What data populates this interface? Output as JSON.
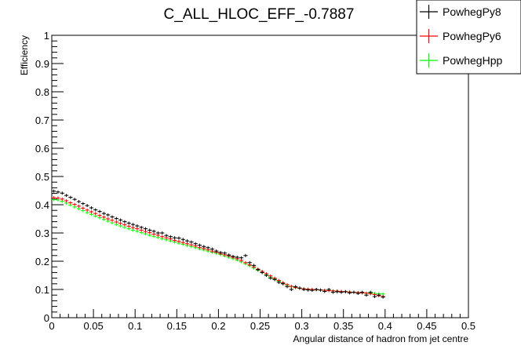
{
  "chart_data": {
    "type": "scatter",
    "title": "C_ALL_HLOC_EFF_-0.7887",
    "xlabel": "Angular distance of hadron from jet centre",
    "ylabel": "Efficiency",
    "xlim": [
      0,
      0.5
    ],
    "ylim": [
      0,
      1
    ],
    "x_ticks": [
      "0",
      "0.05",
      "0.1",
      "0.15",
      "0.2",
      "0.25",
      "0.3",
      "0.35",
      "0.4",
      "0.45",
      "0.5"
    ],
    "y_ticks": [
      "0",
      "0.1",
      "0.2",
      "0.3",
      "0.4",
      "0.5",
      "0.6",
      "0.7",
      "0.8",
      "0.9",
      "1"
    ],
    "grid": false,
    "legend_position": "top-right",
    "x": [
      0.0025,
      0.0075,
      0.0125,
      0.0175,
      0.0225,
      0.0275,
      0.0325,
      0.0375,
      0.0425,
      0.0475,
      0.0525,
      0.0575,
      0.0625,
      0.0675,
      0.0725,
      0.0775,
      0.0825,
      0.0875,
      0.0925,
      0.0975,
      0.1025,
      0.1075,
      0.1125,
      0.1175,
      0.1225,
      0.1275,
      0.1325,
      0.1375,
      0.1425,
      0.1475,
      0.1525,
      0.1575,
      0.1625,
      0.1675,
      0.1725,
      0.1775,
      0.1825,
      0.1875,
      0.1925,
      0.1975,
      0.2025,
      0.2075,
      0.2125,
      0.2175,
      0.2225,
      0.2275,
      0.2325,
      0.2375,
      0.2425,
      0.2475,
      0.2525,
      0.2575,
      0.2625,
      0.2675,
      0.2725,
      0.2775,
      0.2825,
      0.2875,
      0.2925,
      0.2975,
      0.3025,
      0.3075,
      0.3125,
      0.3175,
      0.3225,
      0.3275,
      0.3325,
      0.3375,
      0.3425,
      0.3475,
      0.3525,
      0.3575,
      0.3625,
      0.3675,
      0.3725,
      0.3775,
      0.3825,
      0.3875,
      0.3925,
      0.3975
    ],
    "series": [
      {
        "name": "PowhegPy8",
        "color": "#000000",
        "values": [
          0.448,
          0.445,
          0.441,
          0.433,
          0.426,
          0.419,
          0.411,
          0.404,
          0.397,
          0.389,
          0.382,
          0.376,
          0.369,
          0.364,
          0.357,
          0.351,
          0.346,
          0.34,
          0.335,
          0.33,
          0.325,
          0.32,
          0.315,
          0.31,
          0.306,
          0.3,
          0.3,
          0.291,
          0.287,
          0.283,
          0.282,
          0.277,
          0.272,
          0.268,
          0.262,
          0.257,
          0.252,
          0.248,
          0.243,
          0.236,
          0.231,
          0.229,
          0.222,
          0.217,
          0.214,
          0.212,
          0.22,
          0.195,
          0.185,
          0.17,
          0.16,
          0.15,
          0.14,
          0.135,
          0.125,
          0.12,
          0.11,
          0.1,
          0.11,
          0.105,
          0.1,
          0.098,
          0.097,
          0.1,
          0.098,
          0.093,
          0.1,
          0.09,
          0.092,
          0.09,
          0.092,
          0.088,
          0.09,
          0.086,
          0.09,
          0.08,
          0.09,
          0.075,
          0.08,
          0.073
        ]
      },
      {
        "name": "PowhegPy6",
        "color": "#ff0000",
        "values": [
          0.425,
          0.424,
          0.42,
          0.414,
          0.407,
          0.401,
          0.395,
          0.388,
          0.381,
          0.375,
          0.369,
          0.362,
          0.356,
          0.35,
          0.345,
          0.339,
          0.334,
          0.329,
          0.324,
          0.319,
          0.315,
          0.31,
          0.305,
          0.301,
          0.296,
          0.292,
          0.287,
          0.283,
          0.279,
          0.274,
          0.27,
          0.266,
          0.262,
          0.258,
          0.254,
          0.249,
          0.245,
          0.241,
          0.236,
          0.232,
          0.227,
          0.223,
          0.219,
          0.214,
          0.209,
          0.203,
          0.195,
          0.187,
          0.18,
          0.172,
          0.164,
          0.156,
          0.148,
          0.14,
          0.132,
          0.124,
          0.117,
          0.111,
          0.107,
          0.104,
          0.102,
          0.101,
          0.1,
          0.099,
          0.098,
          0.097,
          0.096,
          0.095,
          0.094,
          0.093,
          0.092,
          0.091,
          0.09,
          0.089,
          0.088,
          0.087,
          0.085,
          0.082,
          0.078,
          0.075
        ]
      },
      {
        "name": "PowhegHpp",
        "color": "#00ff00",
        "values": [
          0.418,
          0.417,
          0.412,
          0.406,
          0.399,
          0.392,
          0.386,
          0.379,
          0.372,
          0.366,
          0.36,
          0.354,
          0.348,
          0.342,
          0.336,
          0.33,
          0.325,
          0.32,
          0.315,
          0.31,
          0.306,
          0.301,
          0.297,
          0.292,
          0.288,
          0.284,
          0.28,
          0.276,
          0.272,
          0.268,
          0.264,
          0.26,
          0.256,
          0.252,
          0.248,
          0.244,
          0.24,
          0.236,
          0.232,
          0.228,
          0.224,
          0.219,
          0.214,
          0.209,
          0.204,
          0.198,
          0.191,
          0.184,
          0.176,
          0.168,
          0.16,
          0.152,
          0.144,
          0.137,
          0.129,
          0.122,
          0.115,
          0.11,
          0.106,
          0.104,
          0.102,
          0.101,
          0.1,
          0.099,
          0.098,
          0.097,
          0.096,
          0.095,
          0.094,
          0.093,
          0.092,
          0.091,
          0.09,
          0.089,
          0.088,
          0.087,
          0.087,
          0.086,
          0.085,
          0.084
        ]
      }
    ]
  }
}
